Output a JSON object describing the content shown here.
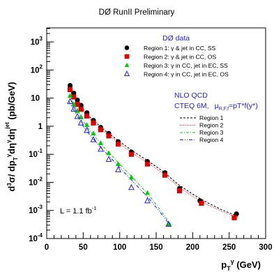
{
  "chart_data": {
    "type": "scatter",
    "title": "DØ RunII Preliminary",
    "xlabel": {
      "main": "p",
      "sub": "T",
      "sup": "γ",
      "unit": " (GeV)"
    },
    "ylabel": {
      "prefix": "d",
      "order": "3",
      "mid": "σ/ dp",
      "sub1": "T",
      "sup1": "γ",
      "mid2": "dη",
      "sup2": "γ",
      "mid3": "dη",
      "sup3": "jet",
      "unit": "(pb/GeV)"
    },
    "xlim": [
      0,
      300
    ],
    "ylim_log10": [
      -4,
      3.5
    ],
    "log_y": true,
    "x_ticks": [
      {
        "value": 0,
        "label": "0"
      },
      {
        "value": 50,
        "label": "50"
      },
      {
        "value": 100,
        "label": "100"
      },
      {
        "value": 150,
        "label": "150"
      },
      {
        "value": 200,
        "label": "200"
      },
      {
        "value": 250,
        "label": "250"
      },
      {
        "value": 300,
        "label": "300"
      }
    ],
    "y_ticks": [
      {
        "exp": 3,
        "label": "10",
        "sup": "3"
      },
      {
        "exp": 2,
        "label": "10",
        "sup": "2"
      },
      {
        "exp": 1,
        "label": "10",
        "sup": ""
      },
      {
        "exp": 0,
        "label": "1",
        "sup": ""
      },
      {
        "exp": -1,
        "label": "10",
        "sup": "-1"
      },
      {
        "exp": -2,
        "label": "10",
        "sup": "-2"
      },
      {
        "exp": -3,
        "label": "10",
        "sup": "-3"
      },
      {
        "exp": -4,
        "label": "10",
        "sup": "-4"
      }
    ],
    "data_legend_title": "DØ data",
    "series": [
      {
        "name": "Region 1: γ & jet in CC, SS",
        "marker": "circle",
        "color": "#000000",
        "x": [
          32,
          37,
          42,
          47,
          55,
          64,
          74,
          85,
          98,
          116,
          138,
          162,
          182,
          210,
          260
        ],
        "y": [
          28,
          15,
          8.5,
          5.5,
          3.0,
          1.6,
          0.9,
          0.55,
          0.28,
          0.12,
          0.055,
          0.022,
          0.006,
          0.0022,
          0.00075
        ]
      },
      {
        "name": "Region 2: γ & jet in CC, OS",
        "marker": "square",
        "color": "#e00000",
        "x": [
          32,
          37,
          42,
          47,
          55,
          64,
          74,
          85,
          98,
          116,
          138,
          162,
          182,
          212,
          257
        ],
        "y": [
          20,
          11,
          6.0,
          4.0,
          2.3,
          1.3,
          0.75,
          0.45,
          0.23,
          0.1,
          0.045,
          0.018,
          0.005,
          0.0018,
          0.00055
        ]
      },
      {
        "name": "Region 3: γ in CC, jet in EC, SS",
        "marker": "triangle",
        "color": "#00cc00",
        "x": [
          32,
          37,
          42,
          47,
          55,
          64,
          74,
          85,
          98,
          116,
          138,
          167
        ],
        "y": [
          12,
          6.0,
          3.5,
          2.1,
          1.1,
          0.55,
          0.25,
          0.11,
          0.045,
          0.015,
          0.0042,
          0.00032
        ]
      },
      {
        "name": "Region 4: γ in CC, jet in EC, OS",
        "marker": "triangle-open",
        "color": "#1f1fe0",
        "x": [
          32,
          37,
          42,
          47,
          55,
          64,
          74,
          85,
          98,
          116,
          138,
          167
        ],
        "y": [
          7.5,
          4.0,
          2.2,
          1.3,
          0.7,
          0.33,
          0.15,
          0.065,
          0.028,
          0.0065,
          0.0022,
          0.00032
        ]
      }
    ],
    "theory_title": "NLO QCD",
    "theory_pdf": "CTEQ 6M,",
    "theory_scale": {
      "mu": "μ",
      "sub": "R,F,f",
      "rest": "=pT*f(y*)"
    },
    "theory_curves": [
      {
        "name": "Region 1",
        "style": "dashed",
        "color": "#000000",
        "x": [
          30,
          40,
          50,
          60,
          80,
          100,
          120,
          140,
          160,
          180,
          200,
          220,
          240,
          262
        ],
        "y": [
          30,
          10,
          4.0,
          2.0,
          0.7,
          0.28,
          0.12,
          0.055,
          0.024,
          0.0085,
          0.0038,
          0.0019,
          0.00105,
          0.00062
        ]
      },
      {
        "name": "Region 2",
        "style": "dotted",
        "color": "#e00000",
        "x": [
          30,
          40,
          50,
          60,
          80,
          100,
          120,
          140,
          160,
          180,
          200,
          220,
          240,
          262
        ],
        "y": [
          23,
          8.0,
          3.3,
          1.7,
          0.6,
          0.24,
          0.1,
          0.047,
          0.02,
          0.0072,
          0.0032,
          0.0016,
          0.00092,
          0.00055
        ]
      },
      {
        "name": "Region 3",
        "style": "dashdot",
        "color": "#00cc00",
        "x": [
          30,
          40,
          50,
          60,
          80,
          100,
          120,
          140,
          155,
          170
        ],
        "y": [
          13,
          4.5,
          1.5,
          0.65,
          0.16,
          0.045,
          0.013,
          0.0035,
          0.0011,
          0.00032
        ]
      },
      {
        "name": "Region 4",
        "style": "dashdotdot",
        "color": "#1f1fe0",
        "x": [
          30,
          40,
          50,
          60,
          80,
          100,
          120,
          140,
          155,
          170
        ],
        "y": [
          8.0,
          2.8,
          1.0,
          0.45,
          0.12,
          0.034,
          0.0095,
          0.0027,
          0.0009,
          0.00028
        ]
      }
    ],
    "luminosity": {
      "text": "L = 1.1 fb",
      "sup": "-1"
    }
  }
}
